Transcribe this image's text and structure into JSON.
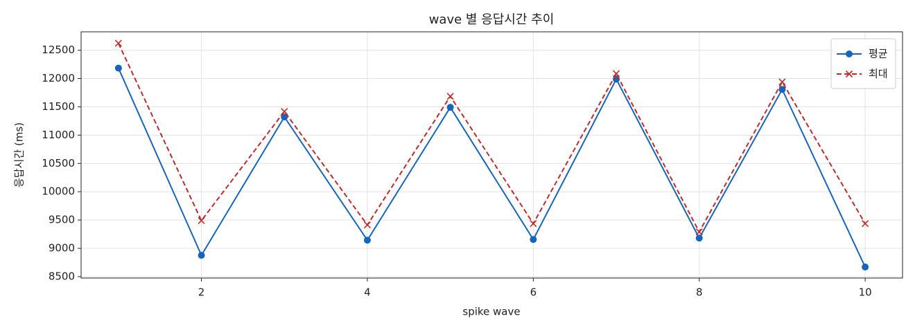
{
  "chart_data": {
    "type": "line",
    "title": "wave 별 응답시간 추이",
    "xlabel": "spike wave",
    "ylabel": "응답시간 (ms)",
    "x": [
      1,
      2,
      3,
      4,
      5,
      6,
      7,
      8,
      9,
      10
    ],
    "series": [
      {
        "name": "평균",
        "color": "#1565c0",
        "marker": "o",
        "linestyle": "solid",
        "values": [
          12184,
          8877,
          11321,
          9144,
          11491,
          9156,
          11989,
          9181,
          11807,
          8670
        ]
      },
      {
        "name": "최대",
        "color": "#c62828",
        "marker": "x",
        "linestyle": "dashed",
        "values": [
          12622,
          9490,
          11418,
          9413,
          11685,
          9437,
          12086,
          9290,
          11940,
          9437
        ]
      }
    ],
    "xlim": [
      0.55,
      10.45
    ],
    "xticks": [
      2,
      4,
      6,
      8,
      10
    ],
    "ylim": [
      8475,
      12825
    ],
    "yticks": [
      8500,
      9000,
      9500,
      10000,
      10500,
      11000,
      11500,
      12000,
      12500
    ],
    "grid": true,
    "legend": "upper right"
  }
}
